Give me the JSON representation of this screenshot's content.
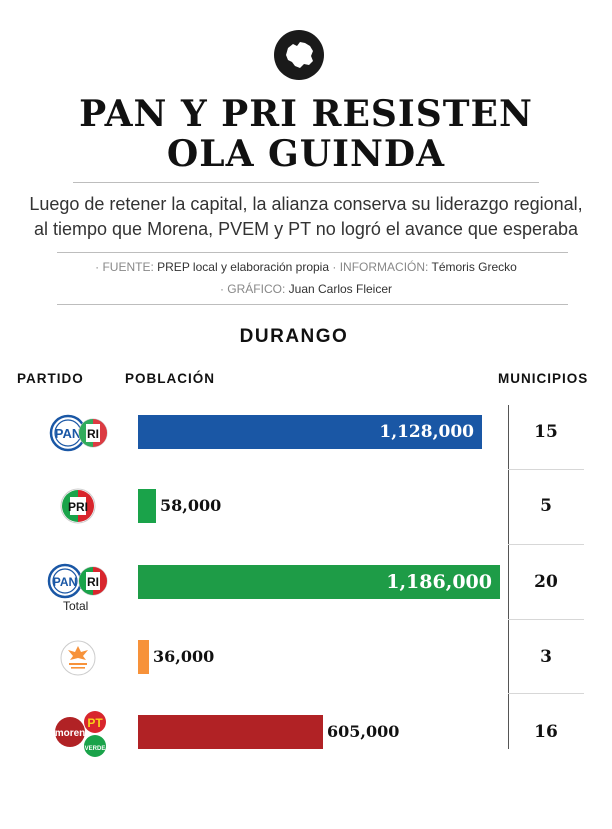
{
  "colors": {
    "pan_blue": "#1a57a5",
    "pri_green": "#1aa34a",
    "pri_red": "#d8262d",
    "mc_orange": "#f7923a",
    "morena_red": "#b12225",
    "total_green": "#1e9c47"
  },
  "header": {
    "logo_icon": "mexico-map-icon",
    "title_line1": "PAN Y PRI RESISTEN",
    "title_line2": "OLA GUINDA",
    "subtitle_line1": "Luego de retener la capital, la alianza conserva su liderazgo regional,",
    "subtitle_line2": "al tiempo que Morena, PVEM y PT no logró el avance que esperaba",
    "credits": {
      "fuente_key": "· FUENTE: ",
      "fuente_val": "PREP local y elaboración propia",
      "info_key": " · INFORMACIÓN: ",
      "info_val": "Témoris Grecko",
      "grafico_key": "· GRÁFICO: ",
      "grafico_val": "Juan Carlos Fleicer"
    }
  },
  "chart_data": {
    "type": "bar",
    "title": "DURANGO",
    "columns": {
      "party": "PARTIDO",
      "population": "POBLACIÓN",
      "municipalities": "MUNICIPIOS"
    },
    "categories": [
      "PAN-PRI",
      "PRI",
      "PAN-PRI Total",
      "Movimiento Ciudadano",
      "Morena-PT-Verde"
    ],
    "values": [
      1128000,
      58000,
      1186000,
      36000,
      605000
    ],
    "value_labels": [
      "1,128,000",
      "58,000",
      "1,186,000",
      "36,000",
      "605,000"
    ],
    "municipios": [
      "15",
      "5",
      "20",
      "3",
      "16"
    ],
    "logos": [
      "pan-pri-logo-icon",
      "pri-logo-icon",
      "pan-pri-logo-icon",
      "movimiento-ciudadano-logo-icon",
      "morena-pt-verde-logo-icon"
    ],
    "logo_captions": [
      "",
      "",
      "Total",
      "",
      ""
    ],
    "xlim": [
      0,
      1186000
    ],
    "grid": false,
    "legend": "none"
  }
}
